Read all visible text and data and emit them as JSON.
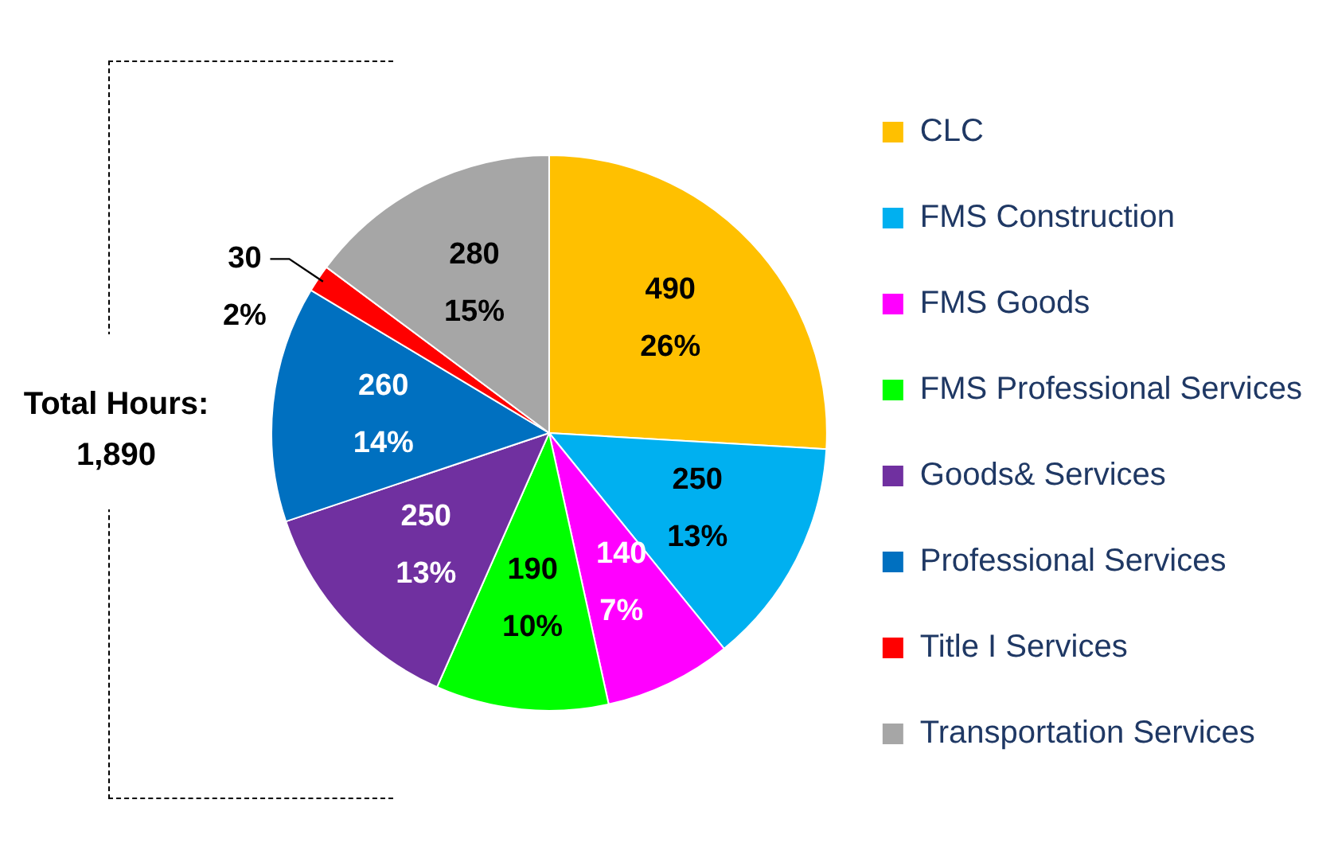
{
  "chart_data": {
    "type": "pie",
    "categories": [
      "CLC",
      "FMS Construction",
      "FMS Goods",
      "FMS Professional Services",
      "Goods& Services",
      "Professional Services",
      "Title I Services",
      "Transportation Services"
    ],
    "values": [
      490,
      250,
      140,
      190,
      250,
      260,
      30,
      280
    ],
    "colors": [
      "#ffc000",
      "#00b0f0",
      "#ff00ff",
      "#00ff00",
      "#7030a0",
      "#0070c0",
      "#ff0000",
      "#a6a6a6"
    ],
    "value_labels": [
      "490\n26%",
      "250\n13%",
      "140\n7%",
      "190\n10%",
      "250\n13%",
      "260\n14%",
      "30\n2%",
      "280\n15%"
    ],
    "legend": "right",
    "annotations": [
      "Total Hours:\n1,890"
    ]
  }
}
